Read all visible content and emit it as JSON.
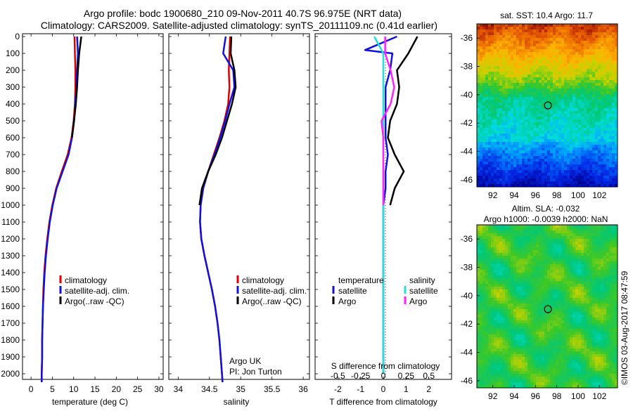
{
  "title_line1": "Argo profile: bodc 1900680_210 09-Nov-2011 40.7S 96.975E (NRT data)",
  "title_line2": "Climatology: CARS2009. Satellite-adjusted climatology: synTS_20111109.nc (0.41d earlier)",
  "colors": {
    "climatology": "#e00000",
    "satellite": "#1010e0",
    "argo": "#000000",
    "sal_satellite": "#22e0e0",
    "sal_argo": "#ff22ff"
  },
  "depth_ticks": [
    "0",
    "100",
    "200",
    "300",
    "400",
    "500",
    "600",
    "700",
    "800",
    "900",
    "1000",
    "1100",
    "1200",
    "1300",
    "1400",
    "1500",
    "1600",
    "1700",
    "1800",
    "1900",
    "2000"
  ],
  "temperature_panel": {
    "xlabel": "temperature (deg C)",
    "xticks": [
      "0",
      "5",
      "10",
      "15",
      "20",
      "25",
      "30"
    ],
    "legend": [
      "climatology",
      "satellite-adj. clim.",
      "Argo(..raw -QC)"
    ]
  },
  "salinity_panel": {
    "xlabel": "salinity",
    "xticks": [
      "34",
      "34.5",
      "35",
      "35.5",
      "36"
    ],
    "legend": [
      "climatology",
      "satellite-adj. clim.",
      "Argo(..raw -QC)"
    ],
    "note1": "Argo UK",
    "note2": "PI: Jon Turton"
  },
  "difference_panel": {
    "xlabel": "T difference from climatology",
    "toplabel": "S difference from climatology",
    "xticks": [
      "-2",
      "-1",
      "0",
      "1",
      "2"
    ],
    "s_ticks": [
      "-0.5",
      "-0.25",
      "0",
      "0.25",
      "0.5"
    ],
    "legend_temp_title": "temperature",
    "legend_sal_title": "salinity",
    "legend_temp": [
      "satellite",
      "Argo"
    ],
    "legend_sal": [
      "satellite",
      "Argo"
    ]
  },
  "sst_map": {
    "title": "sat. SST: 10.4 Argo: 11.7",
    "yticks": [
      "-36",
      "-38",
      "-40",
      "-42",
      "-44",
      "-46"
    ],
    "xticks": [
      "92",
      "94",
      "96",
      "98",
      "100",
      "102"
    ]
  },
  "sla_map": {
    "title1": "Altim. SLA: -0.032",
    "title2": "Argo h1000: -0.0039 h2000: NaN",
    "yticks": [
      "-36",
      "-38",
      "-40",
      "-42",
      "-44",
      "-46"
    ],
    "xticks": [
      "92",
      "94",
      "96",
      "98",
      "100",
      "102"
    ]
  },
  "credit": "©IMOS 03-Aug-2017 08:47:59",
  "chart_data": [
    {
      "type": "line",
      "xlabel": "temperature (deg C)",
      "ylabel": "",
      "xlim": [
        -2,
        31
      ],
      "ylim": [
        2050,
        0
      ],
      "series": [
        {
          "name": "climatology",
          "x": [
            10.2,
            10.3,
            10.4,
            10.4,
            10.3,
            10.0,
            9.5,
            8.6,
            7.2,
            5.9,
            5.0,
            4.3,
            3.8,
            3.4,
            3.1,
            2.9,
            2.8,
            2.7,
            2.6,
            2.6,
            2.5,
            2.5
          ],
          "y": [
            0,
            100,
            200,
            300,
            400,
            500,
            600,
            700,
            800,
            900,
            1000,
            1100,
            1200,
            1300,
            1400,
            1500,
            1600,
            1700,
            1800,
            1900,
            2000,
            2050
          ]
        },
        {
          "name": "satellite-adj. clim.",
          "x": [
            10.8,
            11.0,
            10.8,
            10.6,
            10.4,
            10.1,
            9.6,
            8.8,
            7.4,
            6.0,
            5.1,
            4.4,
            3.9,
            3.5,
            3.2,
            3.0,
            2.8,
            2.7,
            2.6,
            2.6,
            2.5,
            2.5
          ],
          "y": [
            0,
            100,
            200,
            300,
            400,
            500,
            600,
            700,
            800,
            900,
            1000,
            1100,
            1200,
            1300,
            1400,
            1500,
            1600,
            1700,
            1800,
            1900,
            2000,
            2050
          ]
        },
        {
          "name": "Argo(..raw -QC)",
          "x": [
            11.8,
            11.3,
            11.0,
            10.8,
            10.5,
            10.1,
            9.6
          ],
          "y": [
            0,
            100,
            200,
            300,
            400,
            500,
            600
          ]
        }
      ]
    },
    {
      "type": "line",
      "xlabel": "salinity",
      "ylabel": "",
      "xlim": [
        33.85,
        36.1
      ],
      "ylim": [
        2050,
        0
      ],
      "series": [
        {
          "name": "climatology",
          "x": [
            34.83,
            34.82,
            34.81,
            34.82,
            34.8,
            34.74,
            34.66,
            34.57,
            34.48,
            34.4,
            34.36,
            34.35,
            34.37,
            34.42,
            34.48,
            34.54,
            34.59,
            34.63,
            34.66,
            34.68,
            34.7,
            34.71
          ],
          "y": [
            0,
            100,
            200,
            300,
            400,
            500,
            600,
            700,
            800,
            900,
            1000,
            1100,
            1200,
            1300,
            1400,
            1500,
            1600,
            1700,
            1800,
            1900,
            2000,
            2050
          ]
        },
        {
          "name": "satellite-adj. clim.",
          "x": [
            34.76,
            34.72,
            34.88,
            34.9,
            34.82,
            34.75,
            34.67,
            34.58,
            34.48,
            34.4,
            34.36,
            34.35,
            34.37,
            34.42,
            34.48,
            34.54,
            34.59,
            34.63,
            34.66,
            34.68,
            34.7,
            34.71
          ],
          "y": [
            0,
            100,
            200,
            300,
            400,
            500,
            600,
            700,
            800,
            900,
            1000,
            1100,
            1200,
            1300,
            1400,
            1500,
            1600,
            1700,
            1800,
            1900,
            2000,
            2050
          ]
        },
        {
          "name": "Argo(..raw -QC)",
          "x": [
            34.85,
            34.84,
            34.9,
            34.92,
            34.86,
            34.78,
            34.7,
            34.6,
            34.48,
            34.38,
            34.34
          ],
          "y": [
            0,
            100,
            200,
            300,
            400,
            500,
            600,
            700,
            800,
            900,
            1000
          ]
        }
      ]
    },
    {
      "type": "line",
      "xlabel": "T difference from climatology",
      "ylabel": "",
      "xlim": [
        -3,
        3
      ],
      "ylim": [
        2050,
        0
      ],
      "series": [
        {
          "name": "temperature satellite",
          "x": [
            0.6,
            -0.8,
            0.4,
            0.3,
            0.1,
            0.1,
            0.1,
            0.1,
            0.2,
            0.1,
            0.1,
            0.0,
            0.0,
            0.0,
            0.0,
            0.0,
            0.0,
            0.0,
            0.0,
            0.0,
            0.0
          ],
          "y": [
            0,
            80,
            100,
            200,
            300,
            400,
            500,
            600,
            700,
            800,
            900,
            1000,
            1100,
            1200,
            1300,
            1400,
            1500,
            1600,
            1700,
            1800,
            2000
          ]
        },
        {
          "name": "temperature Argo",
          "x": [
            1.5,
            1.1,
            0.6,
            0.7,
            0.6,
            0.3,
            0.2,
            0.5,
            0.9,
            0.5,
            0.3
          ],
          "y": [
            0,
            100,
            200,
            300,
            400,
            500,
            600,
            700,
            800,
            900,
            1000
          ]
        },
        {
          "name": "salinity satellite",
          "x": [
            -0.1,
            0.0,
            0.0,
            0.0,
            0.0,
            0.0,
            0.0,
            0.0,
            0.0,
            0.0,
            0.0
          ],
          "y": [
            0,
            100,
            300,
            500,
            700,
            900,
            1100,
            1300,
            1500,
            1700,
            2000
          ]
        },
        {
          "name": "salinity Argo",
          "x": [
            0.02,
            0.02,
            0.08,
            0.12,
            0.08,
            -0.02,
            0.0,
            0.0,
            0.0,
            0.0,
            0.0
          ],
          "y": [
            0,
            100,
            200,
            300,
            400,
            500,
            600,
            700,
            800,
            900,
            1000
          ]
        }
      ]
    },
    {
      "type": "heatmap",
      "title": "sat. SST: 10.4 Argo: 11.7",
      "xlim": [
        90.5,
        103.7
      ],
      "ylim": [
        -46.5,
        -35
      ]
    },
    {
      "type": "heatmap",
      "title": "Altim. SLA: -0.032",
      "xlim": [
        90.5,
        103.7
      ],
      "ylim": [
        -46.5,
        -35
      ]
    }
  ]
}
